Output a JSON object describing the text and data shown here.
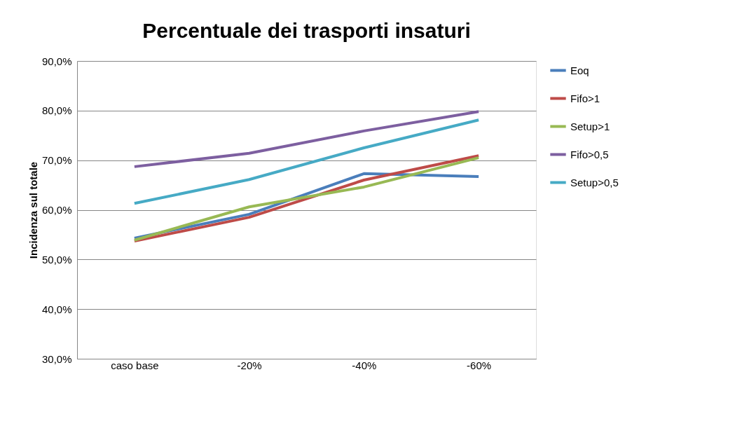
{
  "chart_data": {
    "type": "line",
    "title": "Percentuale dei trasporti insaturi",
    "ylabel": "Incidenza sul totale",
    "categories": [
      "caso base",
      "-20%",
      "-40%",
      "-60%"
    ],
    "series": [
      {
        "name": "Eoq",
        "color": "#4a7ebb",
        "values": [
          54.3,
          59.1,
          67.3,
          66.7
        ]
      },
      {
        "name": "Fifo>1",
        "color": "#be4b48",
        "values": [
          53.7,
          58.5,
          66.0,
          70.9
        ]
      },
      {
        "name": "Setup>1",
        "color": "#98b954",
        "values": [
          53.9,
          60.6,
          64.6,
          70.5
        ]
      },
      {
        "name": "Fifo>0,5",
        "color": "#7d5fa0",
        "values": [
          68.7,
          71.4,
          75.9,
          79.8
        ]
      },
      {
        "name": "Setup>0,5",
        "color": "#46aac5",
        "values": [
          61.3,
          66.1,
          72.5,
          78.1
        ]
      }
    ],
    "ylim": [
      30,
      90
    ],
    "yticks": [
      {
        "value": 30,
        "label": "30,0%"
      },
      {
        "value": 40,
        "label": "40,0%"
      },
      {
        "value": 50,
        "label": "50,0%"
      },
      {
        "value": 60,
        "label": "60,0%"
      },
      {
        "value": 70,
        "label": "70,0%"
      },
      {
        "value": 80,
        "label": "80,0%"
      },
      {
        "value": 90,
        "label": "90,0%"
      }
    ],
    "grid": "y",
    "legend": "right",
    "marker": "none",
    "line_style": "solid"
  }
}
